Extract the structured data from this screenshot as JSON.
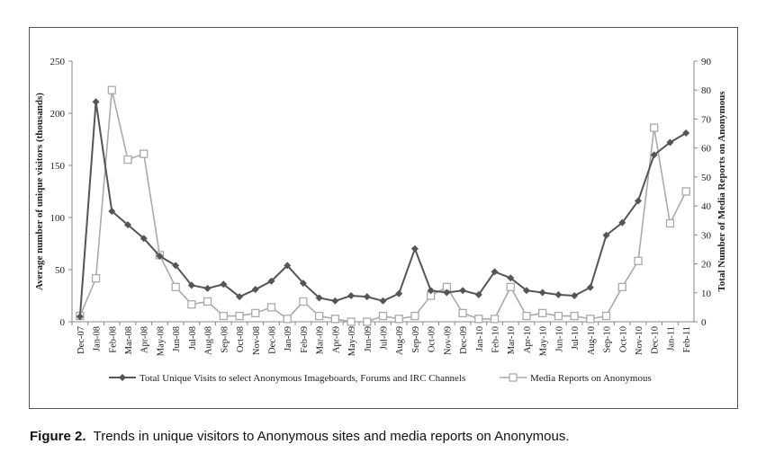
{
  "chart_data": {
    "type": "line",
    "categories": [
      "Dec-07",
      "Jan-08",
      "Feb-08",
      "Mar-08",
      "Apr-08",
      "May-08",
      "Jun-08",
      "Jul-08",
      "Aug-08",
      "Sep-08",
      "Oct-08",
      "Nov-08",
      "Dec-08",
      "Jan-09",
      "Feb-09",
      "Mar-09",
      "Apr-09",
      "May-09",
      "Jun-09",
      "Jul-09",
      "Aug-09",
      "Sep-09",
      "Oct-09",
      "Nov-09",
      "Dec-09",
      "Jan-10",
      "Feb-10",
      "Mar-10",
      "Apr-10",
      "May-10",
      "Jun-10",
      "Jul-10",
      "Aug-10",
      "Sep-10",
      "Oct-10",
      "Nov-10",
      "Dec-10",
      "Jan-11",
      "Feb-11"
    ],
    "ylabel_left": "Average number of unique visitors (thousands)",
    "ylabel_right": "Total Number of Media Reports on Anonymous",
    "ylim_left": [
      0,
      250
    ],
    "ylim_right": [
      0,
      90
    ],
    "yticks_left": [
      "0",
      "50",
      "100",
      "150",
      "200",
      "250"
    ],
    "yticks_right": [
      "0",
      "10",
      "20",
      "30",
      "40",
      "50",
      "60",
      "70",
      "80",
      "90"
    ],
    "legend_position": "bottom",
    "grid": false,
    "series": [
      {
        "name": "Total Unique Visits to select Anonymous Imageboards, Forums and IRC Channels",
        "axis": "left",
        "color": "#555555",
        "marker": "diamond",
        "values": [
          5,
          211,
          106,
          93,
          80,
          63,
          54,
          35,
          32,
          36,
          24,
          31,
          39,
          54,
          37,
          23,
          20,
          25,
          24,
          20,
          27,
          70,
          30,
          28,
          30,
          26,
          48,
          42,
          30,
          28,
          26,
          25,
          33,
          83,
          95,
          116,
          160,
          172,
          181
        ]
      },
      {
        "name": "Media Reports on Anonymous",
        "axis": "right",
        "color": "#aaaaaa",
        "marker": "square",
        "values": [
          2,
          15,
          80,
          56,
          58,
          23,
          12,
          6,
          7,
          2,
          2,
          3,
          5,
          1,
          7,
          2,
          1,
          0,
          0,
          2,
          1,
          2,
          9,
          12,
          3,
          1,
          1,
          12,
          2,
          3,
          2,
          2,
          1,
          2,
          12,
          21,
          67,
          34,
          45
        ]
      }
    ]
  },
  "caption": {
    "label": "Figure 2.",
    "text": "Trends in unique visitors to Anonymous sites and media reports on Anonymous."
  }
}
